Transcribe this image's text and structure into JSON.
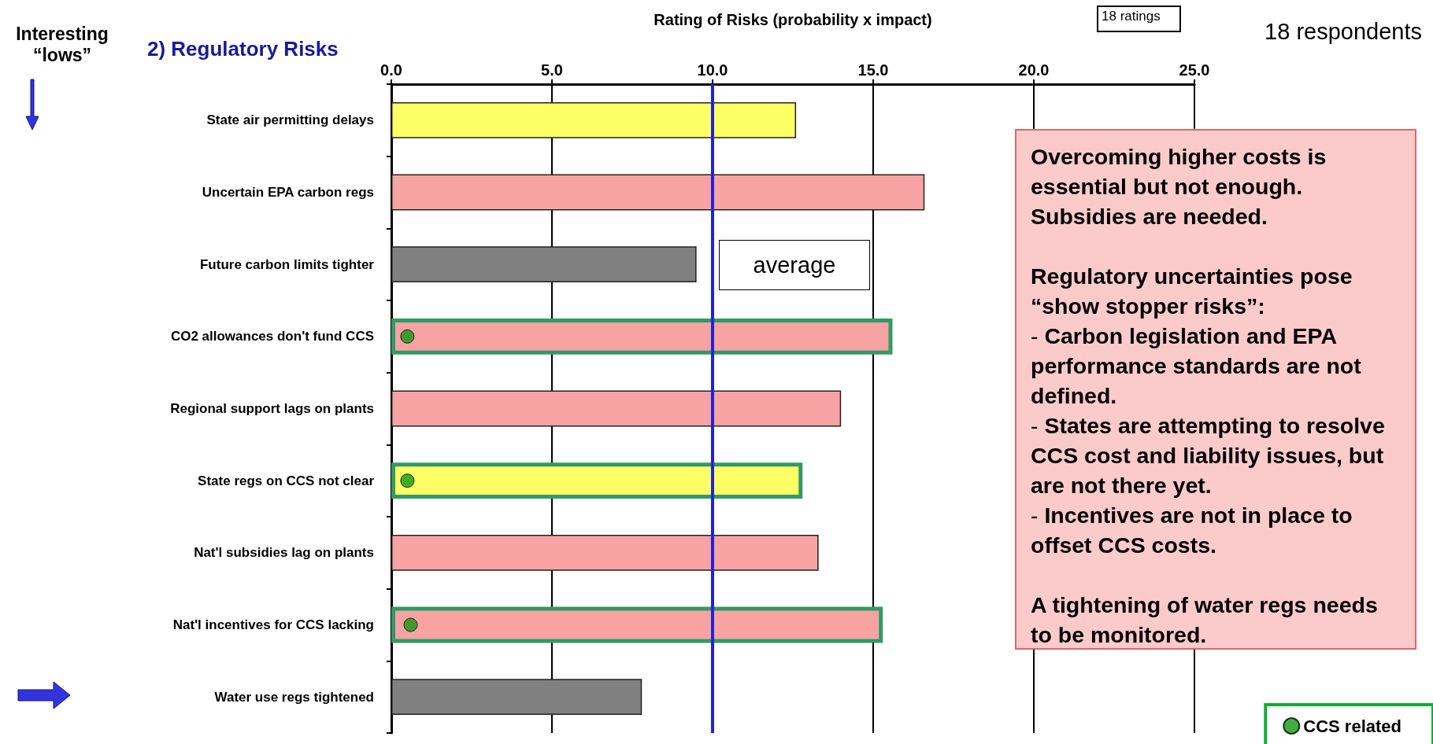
{
  "chart_data": {
    "type": "bar",
    "orientation": "horizontal",
    "title": "2) Regulatory Risks",
    "xlabel": "Rating of Risks (probability x impact)",
    "categories": [
      "State air permitting delays",
      "Uncertain EPA carbon regs",
      "Future carbon limits tighter",
      "CO2 allowances don't fund CCS",
      "Regional support lags on plants",
      "State regs on CCS not clear",
      "Nat'l subsidies lag on plants",
      "Nat'l incentives for CCS lacking",
      "Water use regs tightened"
    ],
    "series": [
      {
        "values": [
          12.6,
          16.6,
          9.5,
          15.6,
          14.0,
          12.8,
          13.3,
          15.3,
          7.8
        ],
        "colors": [
          "#ffff66",
          "#f7a3a3",
          "#808080",
          "#f7a3a3",
          "#f7a3a3",
          "#ffff66",
          "#f7a3a3",
          "#f7a3a3",
          "#808080"
        ]
      },
      {
        "type": "scatter",
        "name": "CCS related",
        "color": "#119911",
        "values": [
          null,
          null,
          null,
          0.5,
          null,
          0.5,
          null,
          0.6,
          null
        ]
      }
    ],
    "xlim": [
      0,
      25
    ],
    "xticks": [
      {
        "value": 0,
        "label": "0.0"
      },
      {
        "value": 5,
        "label": "5.0"
      },
      {
        "value": 10,
        "label": "10.0"
      },
      {
        "value": 15,
        "label": "15.0"
      },
      {
        "value": 20,
        "label": "20.0"
      },
      {
        "value": 25,
        "label": "25.0"
      }
    ],
    "grid": "x",
    "legend": "bottom right",
    "marker": "circle",
    "ref_lines": [
      {
        "axis": "x",
        "value": 10.0,
        "label": "average",
        "color": "#2222dd"
      }
    ],
    "annotations": [
      "Interesting “lows”",
      "18 ratings",
      "18 respondents",
      "Overcoming higher costs is essential but not enough. Subsidies are needed.",
      "Regulatory uncertainties pose “show stopper risks”:",
      "- Carbon legislation and EPA performance standards are not defined.",
      "- States are attempting to resolve CCS cost and liability issues, but are not there yet.",
      "- Incentives are not in place to offset CCS costs.",
      "A tightening of water regs needs to be monitored."
    ]
  }
}
